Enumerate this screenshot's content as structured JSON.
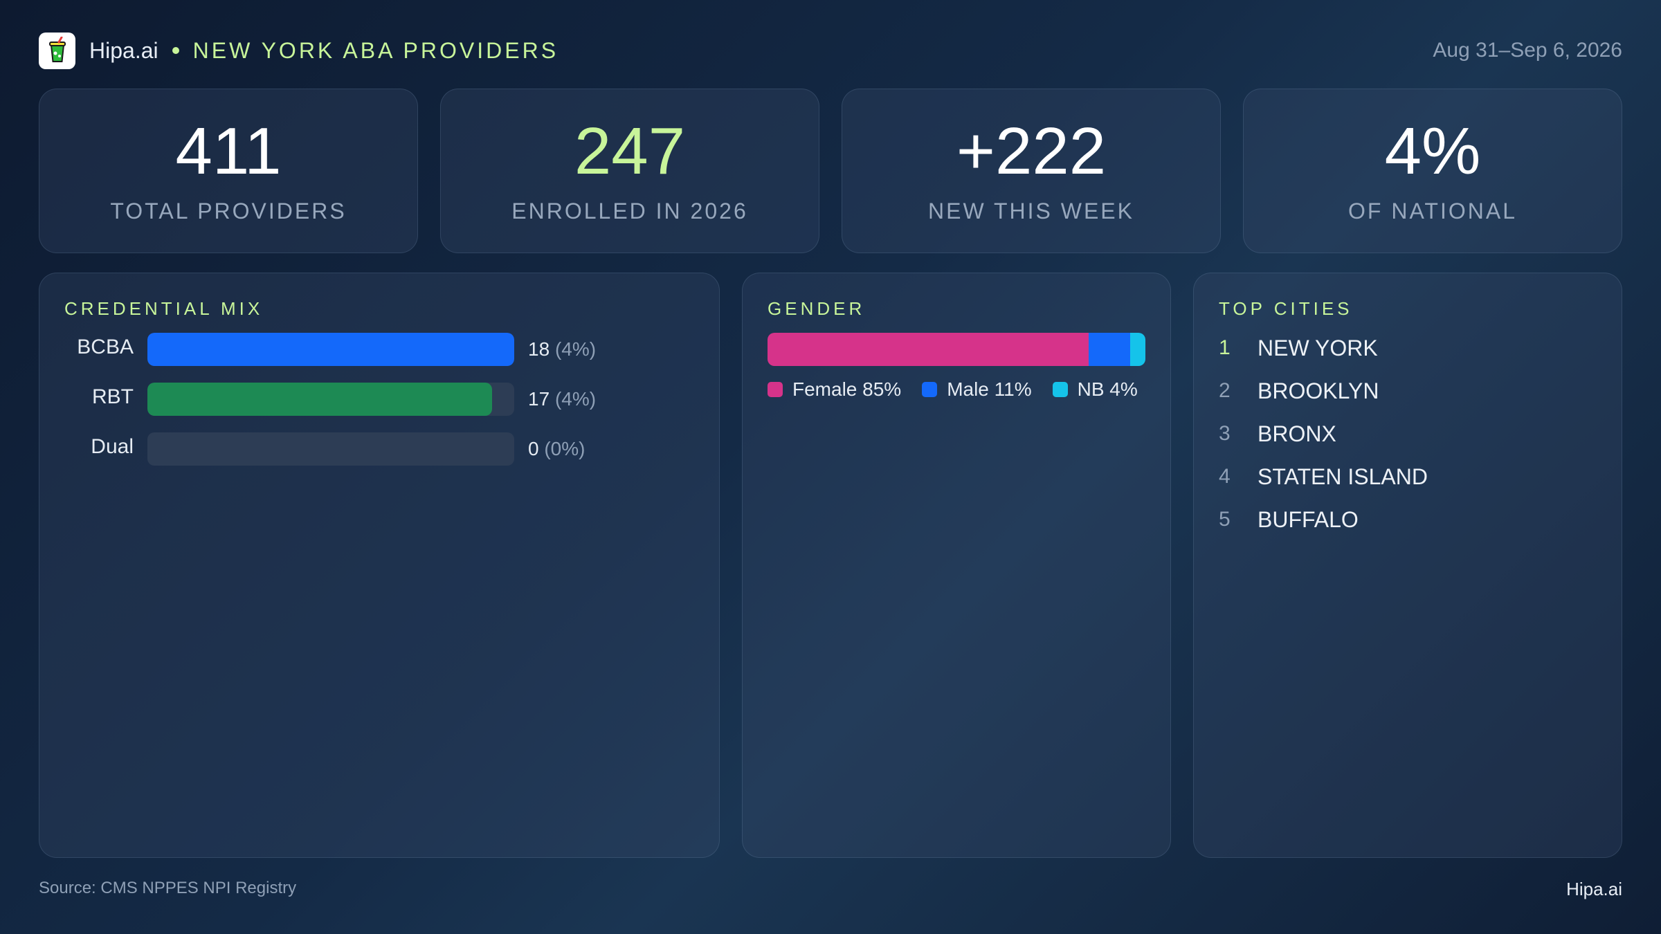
{
  "header": {
    "brand": "Hipa.ai",
    "title": "NEW YORK ABA PROVIDERS",
    "date_range": "Aug 31–Sep 6, 2026",
    "logo_icon": "drink-cup-icon"
  },
  "stats": [
    {
      "value": "411",
      "label": "TOTAL PROVIDERS"
    },
    {
      "value": "247",
      "label": "ENROLLED IN 2026"
    },
    {
      "value": "+222",
      "label": "NEW THIS WEEK"
    },
    {
      "value": "4%",
      "label": "OF NATIONAL"
    }
  ],
  "credential_mix": {
    "title": "CREDENTIAL MIX",
    "rows": [
      {
        "label": "BCBA",
        "count": "18",
        "pct": "(4%)",
        "fill": 1.0,
        "color": "#1469fa"
      },
      {
        "label": "RBT",
        "count": "17",
        "pct": "(4%)",
        "fill": 0.94,
        "color": "#1d8a54"
      },
      {
        "label": "Dual",
        "count": "0",
        "pct": "(0%)",
        "fill": 0.0,
        "color": "#2d3d55"
      }
    ]
  },
  "gender": {
    "title": "GENDER",
    "segments": [
      {
        "name": "Female",
        "label": "Female 85%",
        "share": 85,
        "color": "#d6338a"
      },
      {
        "name": "Male",
        "label": "Male 11%",
        "share": 11,
        "color": "#1469fa"
      },
      {
        "name": "NB",
        "label": "NB 4%",
        "share": 4,
        "color": "#15c3ea"
      }
    ]
  },
  "top_cities": {
    "title": "TOP CITIES",
    "items": [
      {
        "rank": "1",
        "name": "NEW YORK"
      },
      {
        "rank": "2",
        "name": "BROOKLYN"
      },
      {
        "rank": "3",
        "name": "BRONX"
      },
      {
        "rank": "4",
        "name": "STATEN ISLAND"
      },
      {
        "rank": "5",
        "name": "BUFFALO"
      }
    ]
  },
  "footer": {
    "source": "Source: CMS NPPES NPI Registry",
    "brand": "Hipa.ai"
  }
}
